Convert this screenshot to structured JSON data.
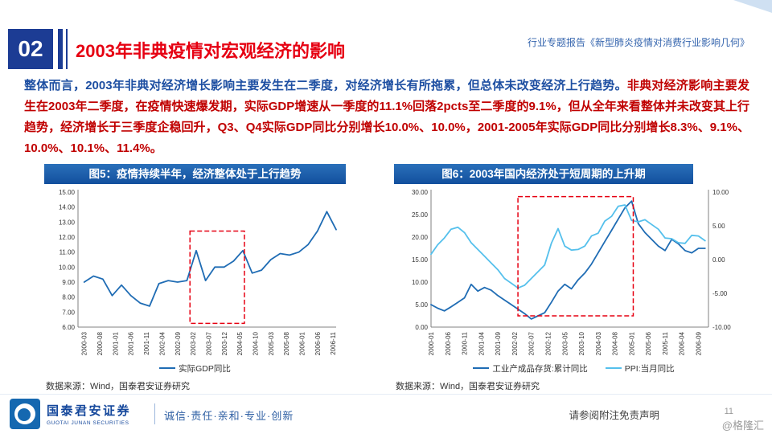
{
  "header": {
    "section_number": "02",
    "title": "2003年非典疫情对宏观经济的影响",
    "report_tag": "行业专题报告《新型肺炎疫情对消费行业影响几何》"
  },
  "body": {
    "lead": "整体而言，2003年非典对经济增长影响主要发生在二季度，对经济增长有所拖累，但总体未改变经济上行趋势。",
    "detail": "非典对经济影响主要发生在2003年二季度，在疫情快速爆发期，实际GDP增速从一季度的11.1%回落2pcts至二季度的9.1%，但从全年来看整体并未改变其上行趋势，经济增长于三季度企稳回升，Q3、Q4实际GDP同比分别增长10.0%、10.0%，2001-2005年实际GDP同比分别增长8.3%、9.1%、10.0%、10.1%、11.4%。"
  },
  "colors": {
    "accent_blue": "#1c3c94",
    "title_red": "#e60012",
    "body_blue": "#1e4fa2",
    "body_red": "#c00000",
    "panel_title_blue": "#155a9e",
    "line_dark_blue": "#1f6cb4",
    "line_light_blue": "#55c0ec",
    "highlight_red": "#e60012"
  },
  "chart_data": [
    {
      "type": "line",
      "title": "图5：疫情持续半年，经济整体处于上行趋势",
      "source": "数据来源：Wind，国泰君安证券研究",
      "ylim": [
        6,
        15
      ],
      "y_tick_step": 1,
      "grid": false,
      "legend_position": "bottom",
      "x_axis": {
        "start": "2000-01",
        "months": 84,
        "tick_months": [
          2,
          7,
          12,
          17,
          22,
          27,
          32,
          37,
          42,
          47,
          52,
          57,
          62,
          67,
          72,
          77,
          82
        ],
        "tick_labels": [
          "2000-03",
          "2000-08",
          "2001-01",
          "2001-06",
          "2001-11",
          "2002-04",
          "2002-09",
          "2003-02",
          "2003-07",
          "2003-12",
          "2004-05",
          "2004-10",
          "2005-03",
          "2005-08",
          "2006-01",
          "2006-06",
          "2006-11"
        ]
      },
      "series": [
        {
          "name": "实际GDP同比",
          "axis": "left",
          "color": "#1f6cb4",
          "x_start_month": 2,
          "x_step_months": 3,
          "values": [
            9.0,
            9.4,
            9.2,
            8.1,
            8.8,
            8.1,
            7.6,
            7.4,
            8.9,
            9.1,
            9.0,
            9.1,
            11.1,
            9.1,
            10.0,
            10.0,
            10.4,
            11.1,
            9.6,
            9.8,
            10.5,
            10.9,
            10.8,
            11.0,
            11.5,
            12.4,
            13.7,
            12.5
          ]
        }
      ],
      "highlight_box": {
        "x_from_month": 36,
        "x_to_month": 53.5,
        "y_from": 6.25,
        "y_to": 12.4,
        "color": "#e60012"
      }
    },
    {
      "type": "line",
      "title": "图6：2003年国内经济处于短周期的上升期",
      "source": "数据来源：Wind，国泰君安证券研究",
      "ylim_left": [
        0,
        30
      ],
      "ylim_right": [
        -10,
        10
      ],
      "y_tick_step": 5,
      "y_tick_step_right": 5,
      "grid": false,
      "legend_position": "bottom",
      "x_axis": {
        "start": "2000-01",
        "months": 84,
        "tick_months": [
          0,
          5,
          10,
          15,
          20,
          25,
          30,
          35,
          40,
          45,
          50,
          55,
          60,
          65,
          70,
          75,
          80
        ],
        "tick_labels": [
          "2000-01",
          "2000-06",
          "2000-11",
          "2001-04",
          "2001-09",
          "2002-02",
          "2002-07",
          "2002-12",
          "2003-05",
          "2003-10",
          "2004-03",
          "2004-08",
          "2005-01",
          "2005-06",
          "2005-11",
          "2006-04",
          "2006-09"
        ]
      },
      "series": [
        {
          "name": "工业产成品存货:累计同比",
          "axis": "left",
          "color": "#1f6cb4",
          "x_start_month": 0,
          "x_step_months": 2,
          "values": [
            5.0,
            4.2,
            3.6,
            4.5,
            5.5,
            6.5,
            9.5,
            8.0,
            8.8,
            8.2,
            7.0,
            6.0,
            5.0,
            4.0,
            3.0,
            1.8,
            2.5,
            3.2,
            5.5,
            8.0,
            9.5,
            8.5,
            10.5,
            12.0,
            14.0,
            16.5,
            19.0,
            21.5,
            24.0,
            26.5,
            28.0,
            23.0,
            21.0,
            19.5,
            18.0,
            17.0,
            19.5,
            18.5,
            17.0,
            16.5,
            17.5,
            17.5
          ]
        },
        {
          "name": "PPI:当月同比",
          "axis": "right",
          "color": "#55c0ec",
          "x_start_month": 0,
          "x_step_months": 2,
          "values": [
            0.8,
            2.2,
            3.2,
            4.5,
            4.8,
            4.0,
            2.5,
            1.5,
            0.5,
            -0.5,
            -1.5,
            -2.8,
            -3.5,
            -4.2,
            -3.8,
            -2.8,
            -1.8,
            -0.8,
            2.4,
            4.6,
            2.0,
            1.4,
            1.5,
            2.0,
            3.5,
            3.9,
            5.7,
            6.4,
            7.9,
            8.1,
            5.8,
            5.6,
            5.9,
            5.2,
            4.5,
            3.2,
            3.1,
            2.5,
            2.4,
            3.6,
            3.5,
            2.8
          ]
        }
      ],
      "highlight_box": {
        "x_from_month": 26,
        "x_to_month": 60.5,
        "y_from": 2.5,
        "y_to": 29,
        "color": "#e60012"
      }
    }
  ],
  "footer": {
    "brand_cn": "国泰君安证券",
    "brand_en": "GUOTAI JUNAN SECURITIES",
    "slogan": "诚信·责任·亲和·专业·创新",
    "disclaimer": "请参阅附注免责声明",
    "page_number": "11",
    "watermark": "@格隆汇"
  }
}
